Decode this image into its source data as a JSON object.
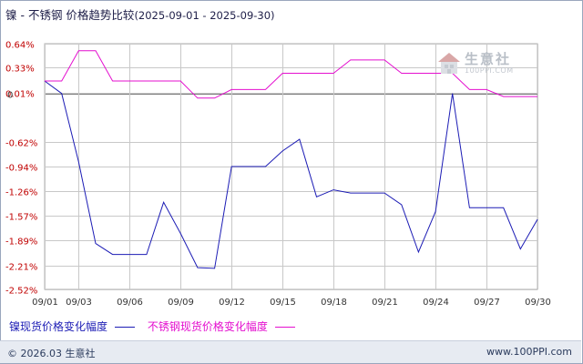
{
  "title": {
    "main": "镍 - 不锈钢 价格趋势比较",
    "range": "(2025-09-01 - 2025-09-30)"
  },
  "watermark": {
    "name": "生意社",
    "url": "100PPI.COM",
    "icon": "house-logo-icon"
  },
  "footer": {
    "copyright": "© 2026.03 生意社",
    "site": "www.100PPI.com"
  },
  "colors": {
    "nickel": "#1c1cb5",
    "steel": "#e40fcf",
    "grid": "#c8c8c8",
    "zero_line": "#7a7a7a",
    "positive_label": "#c00000",
    "negative_label": "#c00000",
    "zero_label": "#333333",
    "x_label": "#333333"
  },
  "chart_data": {
    "type": "line",
    "title": "镍 - 不锈钢 价格趋势比较",
    "x_ticks": [
      "09/01",
      "09/03",
      "09/06",
      "09/09",
      "09/12",
      "09/15",
      "09/18",
      "09/21",
      "09/24",
      "09/27",
      "09/30"
    ],
    "y_ticks": [
      "0.64%",
      "0.33%",
      "0.01%",
      "0",
      "-0.62%",
      "-0.94%",
      "-1.26%",
      "-1.57%",
      "-1.89%",
      "-2.21%",
      "-2.52%"
    ],
    "y_tick_values": [
      0.64,
      0.33,
      0.01,
      0,
      -0.62,
      -0.94,
      -1.26,
      -1.57,
      -1.89,
      -2.21,
      -2.52
    ],
    "ylim": [
      -2.52,
      0.64
    ],
    "x": [
      "09/01",
      "09/02",
      "09/03",
      "09/04",
      "09/05",
      "09/06",
      "09/07",
      "09/08",
      "09/09",
      "09/10",
      "09/11",
      "09/12",
      "09/13",
      "09/14",
      "09/15",
      "09/16",
      "09/17",
      "09/18",
      "09/19",
      "09/20",
      "09/21",
      "09/22",
      "09/23",
      "09/24",
      "09/25",
      "09/26",
      "09/27",
      "09/28",
      "09/29",
      "09/30"
    ],
    "series": [
      {
        "name": "镍现货价格变化幅度",
        "color": "#1c1cb5",
        "values": [
          0.16,
          0.0,
          -0.88,
          -1.93,
          -2.07,
          -2.07,
          -2.07,
          -1.4,
          -1.8,
          -2.24,
          -2.25,
          -0.94,
          -0.94,
          -0.94,
          -0.74,
          -0.59,
          -1.33,
          -1.24,
          -1.28,
          -1.28,
          -1.28,
          -1.43,
          -2.04,
          -1.52,
          0.0,
          -1.47,
          -1.47,
          -1.47,
          -2.0,
          -1.62
        ]
      },
      {
        "name": "不锈钢现货价格变化幅度",
        "color": "#e40fcf",
        "values": [
          0.16,
          0.16,
          0.55,
          0.55,
          0.16,
          0.16,
          0.16,
          0.16,
          0.16,
          -0.06,
          -0.06,
          0.05,
          0.05,
          0.05,
          0.26,
          0.26,
          0.26,
          0.26,
          0.43,
          0.43,
          0.43,
          0.26,
          0.26,
          0.26,
          0.26,
          0.05,
          0.05,
          -0.04,
          -0.04,
          -0.04
        ]
      }
    ],
    "grid": true,
    "legend": "bottom"
  }
}
